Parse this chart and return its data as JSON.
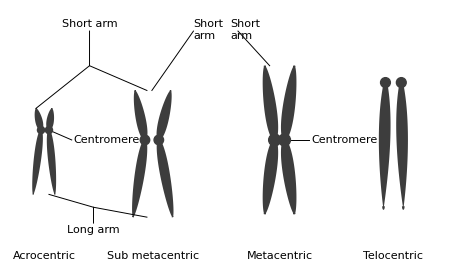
{
  "background_color": "#ffffff",
  "chromosome_color": "#3d3d3d",
  "text_color": "#000000",
  "line_color": "#000000",
  "labels": {
    "acrocentric": "Acrocentric",
    "sub_metacentric": "Sub metacentric",
    "metacentric": "Metacentric",
    "telocentric": "Telocentric",
    "short_arm1": "Short arm",
    "short_arm2": "Short\narm",
    "centromere1": "Centromere",
    "centromere2": "Centromere",
    "long_arm": "Long arm"
  },
  "figsize": [
    4.74,
    2.71
  ],
  "dpi": 100
}
